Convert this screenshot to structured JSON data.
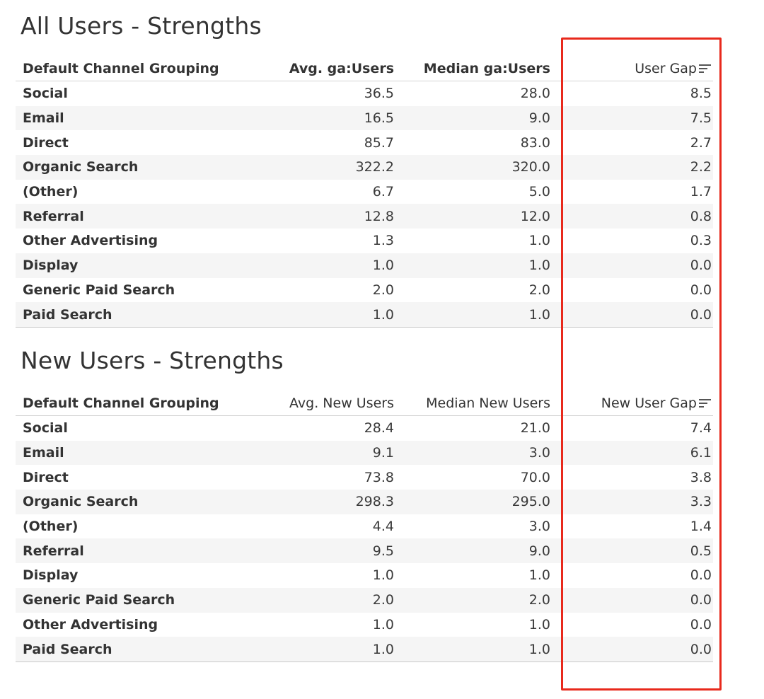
{
  "all_users": {
    "title": "All Users - Strengths",
    "headers": {
      "channel": "Default Channel Grouping",
      "avg": "Avg. ga:Users",
      "median": "Median ga:Users",
      "gap": "User Gap"
    },
    "rows": [
      {
        "channel": "Social",
        "avg": "36.5",
        "median": "28.0",
        "gap": "8.5"
      },
      {
        "channel": "Email",
        "avg": "16.5",
        "median": "9.0",
        "gap": "7.5"
      },
      {
        "channel": "Direct",
        "avg": "85.7",
        "median": "83.0",
        "gap": "2.7"
      },
      {
        "channel": "Organic Search",
        "avg": "322.2",
        "median": "320.0",
        "gap": "2.2"
      },
      {
        "channel": "(Other)",
        "avg": "6.7",
        "median": "5.0",
        "gap": "1.7"
      },
      {
        "channel": "Referral",
        "avg": "12.8",
        "median": "12.0",
        "gap": "0.8"
      },
      {
        "channel": "Other Advertising",
        "avg": "1.3",
        "median": "1.0",
        "gap": "0.3"
      },
      {
        "channel": "Display",
        "avg": "1.0",
        "median": "1.0",
        "gap": "0.0"
      },
      {
        "channel": "Generic Paid Search",
        "avg": "2.0",
        "median": "2.0",
        "gap": "0.0"
      },
      {
        "channel": "Paid Search",
        "avg": "1.0",
        "median": "1.0",
        "gap": "0.0"
      }
    ]
  },
  "new_users": {
    "title": "New Users - Strengths",
    "headers": {
      "channel": "Default Channel Grouping",
      "avg": "Avg. New Users",
      "median": "Median New Users",
      "gap": "New User Gap"
    },
    "rows": [
      {
        "channel": "Social",
        "avg": "28.4",
        "median": "21.0",
        "gap": "7.4"
      },
      {
        "channel": "Email",
        "avg": "9.1",
        "median": "3.0",
        "gap": "6.1"
      },
      {
        "channel": "Direct",
        "avg": "73.8",
        "median": "70.0",
        "gap": "3.8"
      },
      {
        "channel": "Organic Search",
        "avg": "298.3",
        "median": "295.0",
        "gap": "3.3"
      },
      {
        "channel": "(Other)",
        "avg": "4.4",
        "median": "3.0",
        "gap": "1.4"
      },
      {
        "channel": "Referral",
        "avg": "9.5",
        "median": "9.0",
        "gap": "0.5"
      },
      {
        "channel": "Display",
        "avg": "1.0",
        "median": "1.0",
        "gap": "0.0"
      },
      {
        "channel": "Generic Paid Search",
        "avg": "2.0",
        "median": "2.0",
        "gap": "0.0"
      },
      {
        "channel": "Other Advertising",
        "avg": "1.0",
        "median": "1.0",
        "gap": "0.0"
      },
      {
        "channel": "Paid Search",
        "avg": "1.0",
        "median": "1.0",
        "gap": "0.0"
      }
    ]
  },
  "icons": {
    "sort": "sort-descending-icon"
  },
  "colors": {
    "highlight_border": "#e8291c",
    "alt_row": "#f5f5f5",
    "text": "#333333"
  }
}
